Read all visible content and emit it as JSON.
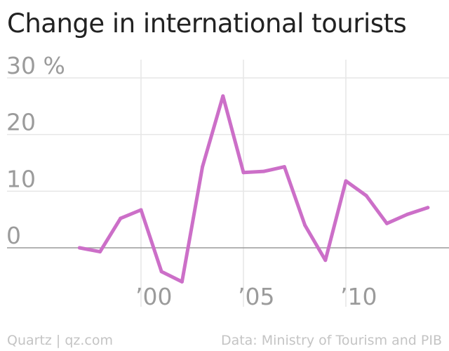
{
  "title": "Change in international tourists",
  "footer": {
    "credit": "Quartz | qz.com",
    "source": "Data: Ministry of Tourism and PIB"
  },
  "chart_data": {
    "type": "line",
    "title": "Change in international tourists",
    "xlabel": "",
    "ylabel": "",
    "y_unit": "%",
    "x": [
      1997,
      1998,
      1999,
      2000,
      2001,
      2002,
      2003,
      2004,
      2005,
      2006,
      2007,
      2008,
      2009,
      2010,
      2011,
      2012,
      2013,
      2014
    ],
    "series": [
      {
        "name": "",
        "color": "#cc6fc8",
        "values": [
          0,
          -0.7,
          5.2,
          6.7,
          -4.2,
          -6.0,
          14.3,
          26.8,
          13.3,
          13.5,
          14.3,
          4.0,
          -2.2,
          11.8,
          9.2,
          4.3,
          5.9,
          7.1
        ]
      }
    ],
    "ylim": [
      -8,
      31
    ],
    "xlim": [
      1994.5,
      2015.1
    ],
    "y_ticks": [
      {
        "value": 30,
        "label": "30 %"
      },
      {
        "value": 20,
        "label": "20"
      },
      {
        "value": 10,
        "label": "10"
      },
      {
        "value": 0,
        "label": "0"
      }
    ],
    "x_ticks": [
      {
        "value": 2000,
        "label": "’00"
      },
      {
        "value": 2005,
        "label": "’05"
      },
      {
        "value": 2010,
        "label": "’10"
      }
    ],
    "grid": true,
    "legend": "none",
    "colors": {
      "line": "#cc6fc8",
      "grid": "#e6e6e6",
      "zero_line": "#9a9a9a",
      "tick_label": "#9b9b9b"
    }
  }
}
